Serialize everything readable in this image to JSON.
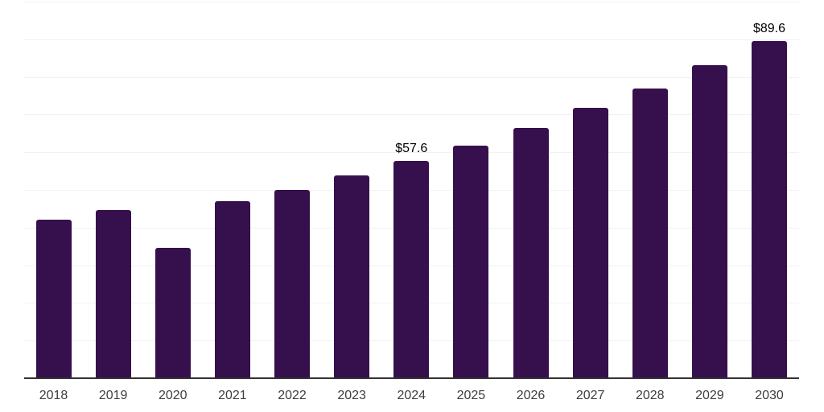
{
  "chart_data": {
    "type": "bar",
    "title": "",
    "xlabel": "",
    "ylabel": "",
    "categories": [
      "2018",
      "2019",
      "2020",
      "2021",
      "2022",
      "2023",
      "2024",
      "2025",
      "2026",
      "2027",
      "2028",
      "2029",
      "2030"
    ],
    "values": [
      42.1,
      44.7,
      34.6,
      47.0,
      50.0,
      53.8,
      57.6,
      61.7,
      66.4,
      71.7,
      77.0,
      83.2,
      89.6
    ],
    "labeled_points": [
      {
        "category": "2024",
        "label": "$57.6"
      },
      {
        "category": "2030",
        "label": "$89.6"
      }
    ],
    "ylim": [
      0,
      100
    ],
    "gridline_step": 10,
    "grid": true,
    "legend": "none",
    "colors": {
      "bar": "#36104D",
      "axis": "#333333",
      "gridline": "#f1f1f1",
      "tick_label": "#3d3d3d",
      "value_label": "#000000",
      "background": "#ffffff"
    }
  }
}
